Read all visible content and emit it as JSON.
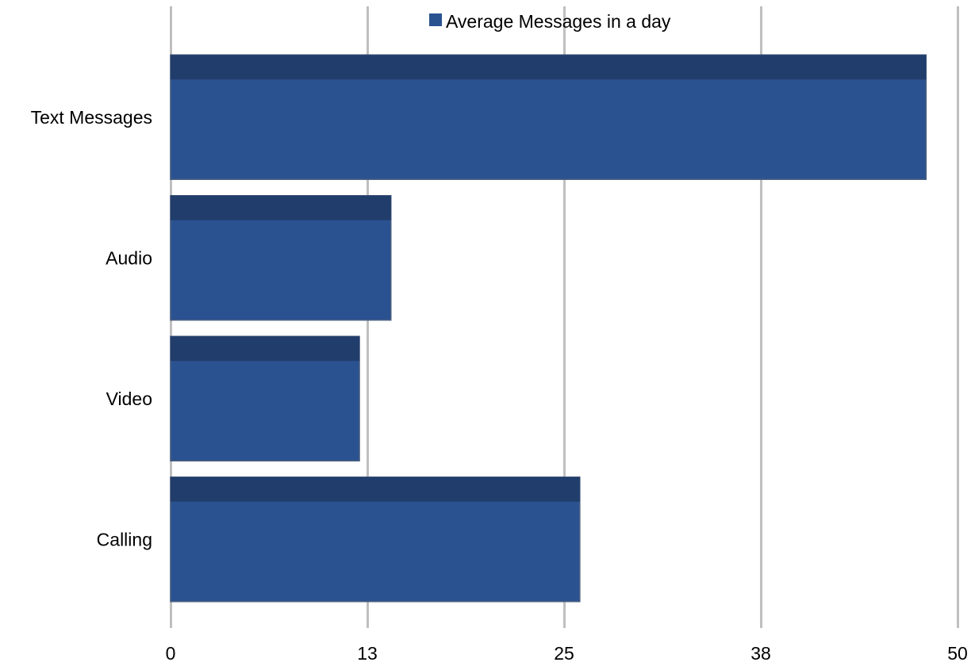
{
  "chart_data": {
    "type": "bar",
    "orientation": "horizontal",
    "categories": [
      "Text Messages",
      "Audio",
      "Video",
      "Calling"
    ],
    "series": [
      {
        "name": "Average Messages in a day",
        "values": [
          48,
          14,
          12,
          26
        ],
        "color": "#2b5290"
      }
    ],
    "xlim": [
      0,
      50
    ],
    "xticks": [
      0,
      12.5,
      25,
      37.5,
      50
    ],
    "xtick_labels": [
      "0",
      "13",
      "25",
      "38",
      "50"
    ],
    "grid": true,
    "legend_position": "top"
  },
  "colors": {
    "bar_face": "#2b5290",
    "bar_top": "#213d6b",
    "bar_edge": "#4b5f80",
    "gridline": "#bfbfbf"
  }
}
